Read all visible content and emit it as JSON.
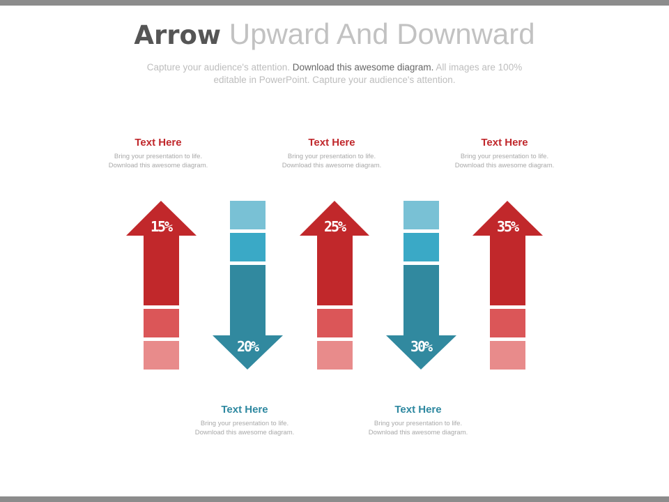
{
  "title": {
    "bold": "Arrow",
    "light": "Upward And Downward"
  },
  "subtitle": {
    "part1": "Capture your audience's attention.",
    "part2": "Download this awesome diagram.",
    "part3": "All images are 100% editable in PowerPoint. Capture your audience's attention."
  },
  "colors": {
    "red_dark": "#c1282b",
    "red_mid": "#db5658",
    "red_light": "#e88b8b",
    "teal_light": "#79c1d5",
    "teal_mid": "#3aa9c6",
    "teal_dark": "#31899f"
  },
  "arrows": [
    {
      "direction": "up",
      "percent": "15%"
    },
    {
      "direction": "down",
      "percent": "20%"
    },
    {
      "direction": "up",
      "percent": "25%"
    },
    {
      "direction": "down",
      "percent": "30%"
    },
    {
      "direction": "up",
      "percent": "35%"
    }
  ],
  "text_blocks": [
    {
      "heading": "Text Here",
      "body": "Bring your presentation to life.\nDownload this awesome diagram."
    },
    {
      "heading": "Text Here",
      "body": "Bring your presentation to life.\nDownload this awesome diagram."
    },
    {
      "heading": "Text Here",
      "body": "Bring your presentation to life.\nDownload this awesome diagram."
    },
    {
      "heading": "Text Here",
      "body": "Bring your presentation to life.\nDownload this awesome diagram."
    },
    {
      "heading": "Text Here",
      "body": "Bring your presentation to life.\nDownload this awesome diagram."
    }
  ]
}
